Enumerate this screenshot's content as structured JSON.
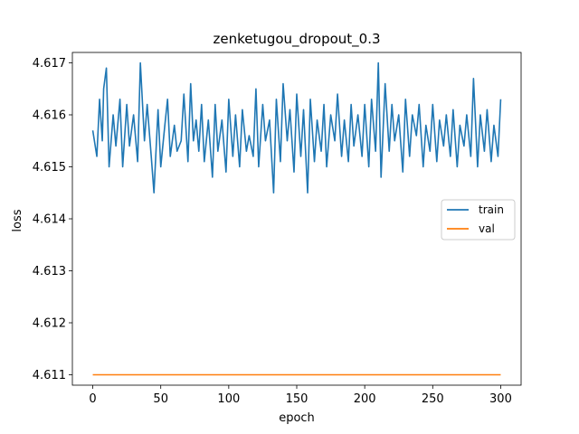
{
  "chart_data": {
    "type": "line",
    "title": "zenketugou_dropout_0.3",
    "xlabel": "epoch",
    "ylabel": "loss",
    "xlim": [
      -15,
      315
    ],
    "ylim": [
      4.6108,
      4.6172
    ],
    "xticks": [
      0,
      50,
      100,
      150,
      200,
      250,
      300
    ],
    "yticks": [
      4.611,
      4.612,
      4.613,
      4.614,
      4.615,
      4.616,
      4.617
    ],
    "grid": false,
    "legend_position": "right",
    "series": [
      {
        "name": "train",
        "color": "#1f77b4",
        "x": [
          0,
          3,
          5,
          7,
          8,
          10,
          12,
          15,
          17,
          20,
          22,
          25,
          27,
          30,
          33,
          35,
          38,
          40,
          43,
          45,
          48,
          50,
          53,
          55,
          57,
          60,
          62,
          65,
          67,
          70,
          72,
          74,
          76,
          78,
          80,
          82,
          85,
          88,
          90,
          92,
          95,
          98,
          100,
          103,
          105,
          108,
          110,
          113,
          115,
          118,
          120,
          122,
          125,
          127,
          130,
          133,
          135,
          138,
          140,
          143,
          145,
          148,
          150,
          153,
          155,
          158,
          160,
          163,
          165,
          168,
          170,
          172,
          175,
          178,
          180,
          183,
          185,
          188,
          190,
          192,
          195,
          198,
          200,
          203,
          205,
          208,
          210,
          212,
          215,
          218,
          220,
          222,
          225,
          228,
          230,
          233,
          235,
          238,
          240,
          243,
          245,
          248,
          250,
          253,
          255,
          258,
          260,
          263,
          265,
          268,
          270,
          273,
          275,
          278,
          280,
          283,
          285,
          288,
          290,
          293,
          295,
          298,
          300
        ],
        "y": [
          4.6157,
          4.6152,
          4.6163,
          4.6155,
          4.6165,
          4.6169,
          4.615,
          4.616,
          4.6154,
          4.6163,
          4.615,
          4.6162,
          4.6154,
          4.616,
          4.6151,
          4.617,
          4.6155,
          4.6162,
          4.6152,
          4.6145,
          4.6161,
          4.615,
          4.6158,
          4.6163,
          4.6152,
          4.6158,
          4.6153,
          4.6155,
          4.6164,
          4.6151,
          4.6166,
          4.6155,
          4.6159,
          4.6153,
          4.6162,
          4.6151,
          4.6159,
          4.6148,
          4.6162,
          4.6153,
          4.6159,
          4.6149,
          4.6163,
          4.6152,
          4.616,
          4.615,
          4.6161,
          4.6153,
          4.6156,
          4.6152,
          4.6165,
          4.615,
          4.6162,
          4.6155,
          4.6159,
          4.6145,
          4.6163,
          4.6151,
          4.6166,
          4.6155,
          4.6161,
          4.6149,
          4.6164,
          4.6152,
          4.6161,
          4.6145,
          4.6163,
          4.6151,
          4.6159,
          4.6153,
          4.6162,
          4.615,
          4.616,
          4.6155,
          4.6164,
          4.6152,
          4.6159,
          4.6151,
          4.6162,
          4.6154,
          4.616,
          4.6152,
          4.6162,
          4.615,
          4.6163,
          4.6153,
          4.617,
          4.6148,
          4.6166,
          4.6153,
          4.6162,
          4.6155,
          4.616,
          4.6149,
          4.6163,
          4.6152,
          4.616,
          4.6156,
          4.6162,
          4.615,
          4.6158,
          4.6153,
          4.6162,
          4.6151,
          4.6159,
          4.6154,
          4.616,
          4.6152,
          4.6161,
          4.615,
          4.6158,
          4.6154,
          4.616,
          4.6152,
          4.6167,
          4.615,
          4.616,
          4.6153,
          4.6161,
          4.6151,
          4.6158,
          4.6152,
          4.6163
        ]
      },
      {
        "name": "val",
        "color": "#ff7f0e",
        "x": [
          0,
          300
        ],
        "y": [
          4.611,
          4.611
        ]
      }
    ]
  }
}
